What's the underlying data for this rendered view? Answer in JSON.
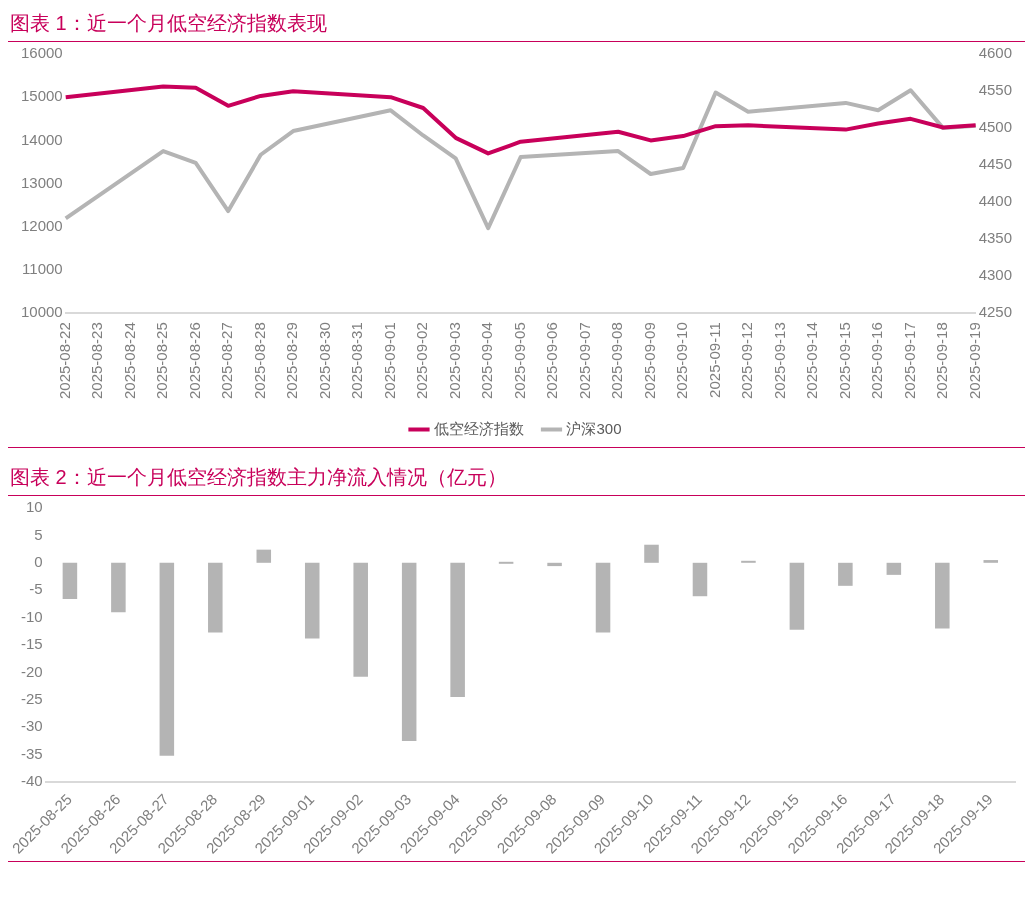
{
  "chart_data": [
    {
      "type": "line",
      "title": "图表 1：近一个月低空经济指数表现",
      "categories": [
        "2025-08-22",
        "2025-08-23",
        "2025-08-24",
        "2025-08-25",
        "2025-08-26",
        "2025-08-27",
        "2025-08-28",
        "2025-08-29",
        "2025-08-30",
        "2025-08-31",
        "2025-09-01",
        "2025-09-02",
        "2025-09-03",
        "2025-09-04",
        "2025-09-05",
        "2025-09-06",
        "2025-09-07",
        "2025-09-08",
        "2025-09-09",
        "2025-09-10",
        "2025-09-11",
        "2025-09-12",
        "2025-09-13",
        "2025-09-14",
        "2025-09-15",
        "2025-09-16",
        "2025-09-17",
        "2025-09-18",
        "2025-09-19"
      ],
      "series": [
        {
          "name": "低空经济指数",
          "color": "#c8005a",
          "values": [
            15000,
            null,
            null,
            15250,
            15220,
            14800,
            15030,
            15140,
            null,
            null,
            15000,
            14750,
            14060,
            13700,
            13970,
            null,
            null,
            14200,
            14000,
            14100,
            14330,
            14350,
            null,
            null,
            14250,
            14390,
            14500,
            14300,
            14350
          ]
        },
        {
          "name": "沪深300",
          "color": "#b4b4b4",
          "axis": "y2",
          "values": [
            4378,
            null,
            null,
            4469,
            4453,
            4388,
            4464,
            4496,
            null,
            null,
            4524,
            4490,
            4459,
            4365,
            4461,
            null,
            null,
            4469,
            4438,
            4446,
            4548,
            4522,
            null,
            null,
            4534,
            4524,
            4551,
            4500,
            4503
          ]
        }
      ],
      "ylim": [
        10000,
        16000
      ],
      "yticks": [
        10000,
        11000,
        12000,
        13000,
        14000,
        15000,
        16000
      ],
      "y2lim": [
        4250,
        4600
      ],
      "y2ticks": [
        4250,
        4300,
        4350,
        4400,
        4450,
        4500,
        4550,
        4600
      ],
      "legend": "bottom",
      "grid": false
    },
    {
      "type": "bar",
      "title": "图表 2：近一个月低空经济指数主力净流入情况（亿元）",
      "categories": [
        "2025-08-25",
        "2025-08-26",
        "2025-08-27",
        "2025-08-28",
        "2025-08-29",
        "2025-09-01",
        "2025-09-02",
        "2025-09-03",
        "2025-09-04",
        "2025-09-05",
        "2025-09-08",
        "2025-09-09",
        "2025-09-10",
        "2025-09-11",
        "2025-09-12",
        "2025-09-15",
        "2025-09-16",
        "2025-09-17",
        "2025-09-18",
        "2025-09-19"
      ],
      "values": [
        -6.6,
        -9.0,
        -35.2,
        -12.7,
        2.4,
        -13.8,
        -20.8,
        -32.5,
        -24.5,
        0,
        -0.6,
        -12.7,
        3.3,
        -6.1,
        0.1,
        -12.2,
        -4.2,
        -2.2,
        -12.0,
        0.5
      ],
      "color": "#b4b4b4",
      "ylim": [
        -40,
        10
      ],
      "yticks": [
        -40,
        -35,
        -30,
        -25,
        -20,
        -15,
        -10,
        -5,
        0,
        5,
        10
      ],
      "legend": false,
      "grid": false
    }
  ]
}
